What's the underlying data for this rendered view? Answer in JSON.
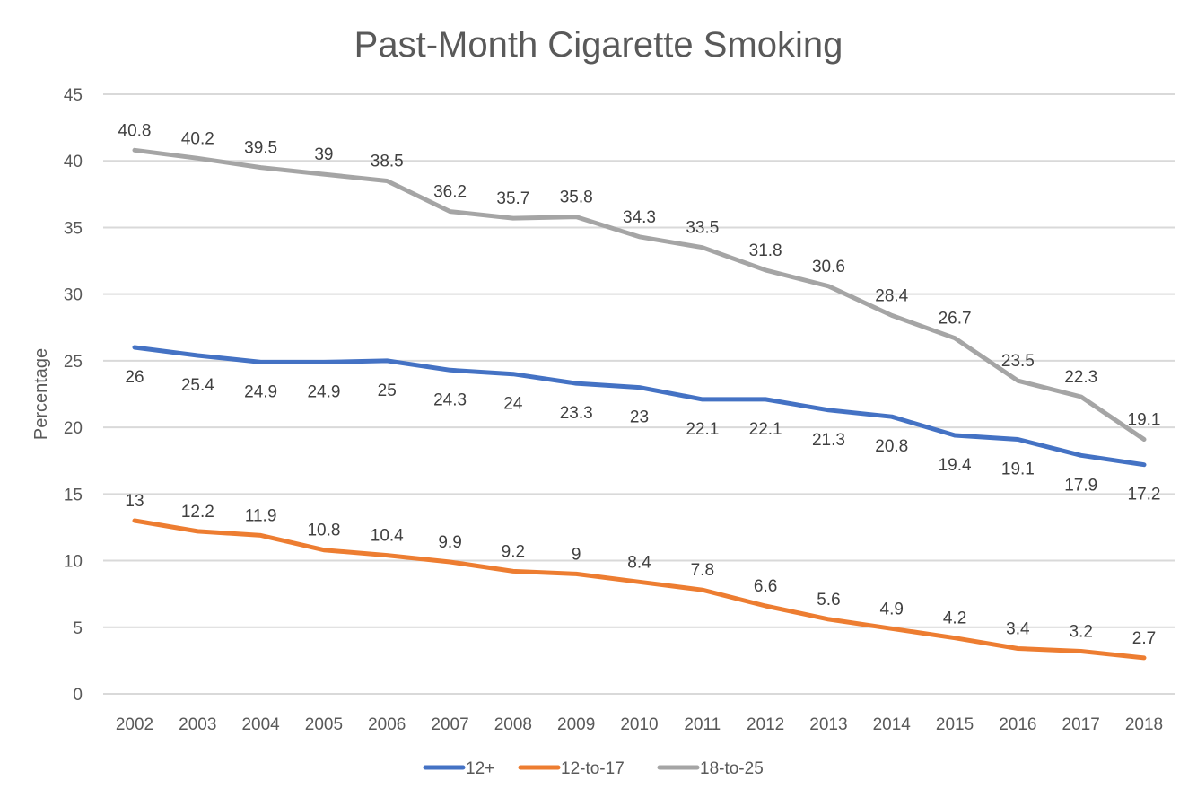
{
  "chart_data": {
    "type": "line",
    "title": "Past-Month Cigarette Smoking",
    "xlabel": "",
    "ylabel": "Percentage",
    "ylim": [
      0,
      45
    ],
    "yticks": [
      0,
      5,
      10,
      15,
      20,
      25,
      30,
      35,
      40,
      45
    ],
    "ytick_labels": [
      "0",
      "5",
      "10",
      "15",
      "20",
      "25",
      "30",
      "35",
      "40",
      "45"
    ],
    "grid": true,
    "legend_position": "bottom",
    "categories": [
      "2002",
      "2003",
      "2004",
      "2005",
      "2006",
      "2007",
      "2008",
      "2009",
      "2010",
      "2011",
      "2012",
      "2013",
      "2014",
      "2015",
      "2016",
      "2017",
      "2018"
    ],
    "series": [
      {
        "name": "12+",
        "color": "#4472c4",
        "label_position": "below",
        "values": [
          26,
          25.4,
          24.9,
          24.9,
          25,
          24.3,
          24,
          23.3,
          23,
          22.1,
          22.1,
          21.3,
          20.8,
          19.4,
          19.1,
          17.9,
          17.2
        ],
        "labels": [
          "26",
          "25.4",
          "24.9",
          "24.9",
          "25",
          "24.3",
          "24",
          "23.3",
          "23",
          "22.1",
          "22.1",
          "21.3",
          "20.8",
          "19.4",
          "19.1",
          "17.9",
          "17.2"
        ]
      },
      {
        "name": "12-to-17",
        "color": "#ed7d31",
        "label_position": "above",
        "values": [
          13,
          12.2,
          11.9,
          10.8,
          10.4,
          9.9,
          9.2,
          9,
          8.4,
          7.8,
          6.6,
          5.6,
          4.9,
          4.2,
          3.4,
          3.2,
          2.7
        ],
        "labels": [
          "13",
          "12.2",
          "11.9",
          "10.8",
          "10.4",
          "9.9",
          "9.2",
          "9",
          "8.4",
          "7.8",
          "6.6",
          "5.6",
          "4.9",
          "4.2",
          "3.4",
          "3.2",
          "2.7"
        ]
      },
      {
        "name": "18-to-25",
        "color": "#a5a5a5",
        "label_position": "above",
        "values": [
          40.8,
          40.2,
          39.5,
          39,
          38.5,
          36.2,
          35.7,
          35.8,
          34.3,
          33.5,
          31.8,
          30.6,
          28.4,
          26.7,
          23.5,
          22.3,
          19.1
        ],
        "labels": [
          "40.8",
          "40.2",
          "39.5",
          "39",
          "38.5",
          "36.2",
          "35.7",
          "35.8",
          "34.3",
          "33.5",
          "31.8",
          "30.6",
          "28.4",
          "26.7",
          "23.5",
          "22.3",
          "19.1"
        ]
      }
    ]
  }
}
